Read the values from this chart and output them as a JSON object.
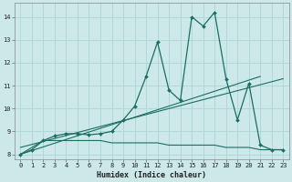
{
  "xlabel": "Humidex (Indice chaleur)",
  "xlim": [
    -0.5,
    23.5
  ],
  "ylim": [
    7.8,
    14.6
  ],
  "xticks": [
    0,
    1,
    2,
    3,
    4,
    5,
    6,
    7,
    8,
    9,
    10,
    11,
    12,
    13,
    14,
    15,
    16,
    17,
    18,
    19,
    20,
    21,
    22,
    23
  ],
  "yticks": [
    8,
    9,
    10,
    11,
    12,
    13,
    14
  ],
  "bg_color": "#cce8e8",
  "line_color": "#1a6e64",
  "grid_color": "#b0d8d8",
  "series1_x": [
    0,
    1,
    2,
    3,
    4,
    5,
    6,
    7,
    8,
    9,
    10,
    11,
    12,
    13,
    14,
    15,
    16,
    17,
    18,
    19,
    20,
    21,
    22,
    23
  ],
  "series1_y": [
    8.0,
    8.2,
    8.6,
    8.8,
    8.9,
    8.9,
    8.85,
    8.9,
    9.0,
    9.5,
    10.1,
    11.4,
    12.9,
    10.8,
    10.35,
    14.0,
    13.6,
    14.2,
    11.3,
    9.5,
    11.1,
    8.4,
    8.2,
    8.2
  ],
  "series2_x": [
    0,
    21
  ],
  "series2_y": [
    8.0,
    11.4
  ],
  "series3_x": [
    0,
    23
  ],
  "series3_y": [
    8.3,
    11.3
  ],
  "series4_x": [
    0,
    2,
    3,
    4,
    5,
    6,
    7,
    8,
    9,
    10,
    11,
    12,
    13,
    14,
    15,
    16,
    17,
    18,
    19,
    20,
    21,
    22,
    23
  ],
  "series4_y": [
    8.0,
    8.6,
    8.6,
    8.6,
    8.6,
    8.6,
    8.6,
    8.5,
    8.5,
    8.5,
    8.5,
    8.5,
    8.4,
    8.4,
    8.4,
    8.4,
    8.4,
    8.3,
    8.3,
    8.3,
    8.2,
    8.2,
    8.2
  ]
}
